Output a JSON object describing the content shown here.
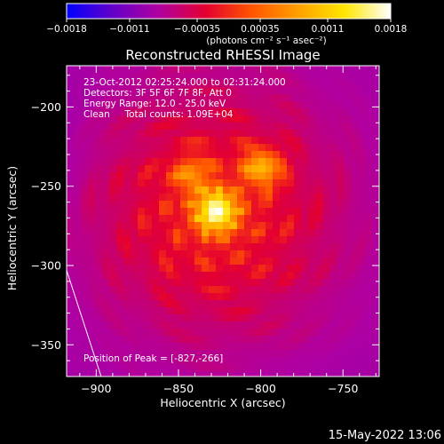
{
  "chart_data": {
    "type": "heatmap",
    "title": "Reconstructed RHESSI Image",
    "xlabel": "Heliocentric X (arcsec)",
    "ylabel": "Heliocentric Y (arcsec)",
    "xlim": [
      -918,
      -728
    ],
    "ylim": [
      -370,
      -174
    ],
    "x_ticks": [
      -900,
      -850,
      -800,
      -750
    ],
    "y_ticks": [
      -200,
      -250,
      -300,
      -350
    ],
    "x_tick_labels": [
      "−900",
      "−850",
      "−800",
      "−750"
    ],
    "y_tick_labels": [
      "−200",
      "−250",
      "−300",
      "−350"
    ],
    "colorbar": {
      "range": [
        -0.0018,
        0.0018
      ],
      "ticks": [
        -0.0018,
        -0.0011,
        -0.00035,
        0.00035,
        0.0011,
        0.0018
      ],
      "tick_labels": [
        "−0.0018",
        "−0.0011",
        "−0.00035",
        "0.00035",
        "0.0011",
        "0.0018"
      ],
      "units_label": "(photons cm⁻² s⁻¹ asec⁻²)",
      "colormap": [
        "#0000ff",
        "#6400c8",
        "#b000a0",
        "#e40030",
        "#ff5500",
        "#ffa000",
        "#ffe600",
        "#ffffff"
      ]
    },
    "annotations": [
      "23-Oct-2012 02:25:24.000 to 02:31:24.000",
      "Detectors: 3F 5F 6F 7F 8F, Att 0",
      "Energy Range: 12.0 - 25.0 keV",
      "Clean     Total counts: 1.09E+04"
    ],
    "peak": {
      "x": -827,
      "y": -266,
      "label": "Position of Peak = [-827,-266]"
    },
    "limb_line": {
      "points": [
        [
          -918,
          -303
        ],
        [
          -897,
          -370
        ]
      ]
    },
    "grid": false
  },
  "footer": {
    "timestamp": "15-May-2022 13:06"
  }
}
